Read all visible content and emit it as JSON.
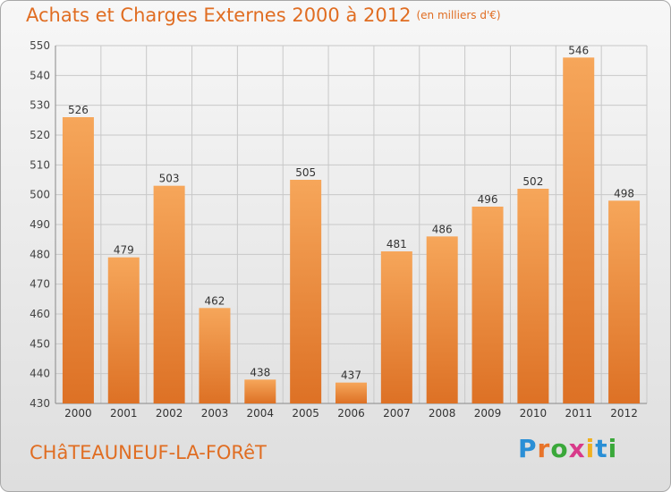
{
  "header": {
    "title": "Achats et Charges Externes 2000 à 2012",
    "unit": "(en milliers d'€)"
  },
  "footer": {
    "commune": "CHâTEAUNEUF-LA-FORêT",
    "brand": "Proxiti"
  },
  "colors": {
    "title": "#e06d22",
    "bar_top": "#f6a65a",
    "bar_bottom": "#dd7125",
    "grid": "#c8c8c8"
  },
  "chart_data": {
    "type": "bar",
    "title": "Achats et Charges Externes 2000 à 2012",
    "subtitle": "(en milliers d'€)",
    "xlabel": "",
    "ylabel": "",
    "categories": [
      "2000",
      "2001",
      "2002",
      "2003",
      "2004",
      "2005",
      "2006",
      "2007",
      "2008",
      "2009",
      "2010",
      "2011",
      "2012"
    ],
    "values": [
      526,
      479,
      503,
      462,
      438,
      505,
      437,
      481,
      486,
      496,
      502,
      546,
      498
    ],
    "ylim": [
      430,
      550
    ],
    "yticks": [
      430,
      440,
      450,
      460,
      470,
      480,
      490,
      500,
      510,
      520,
      530,
      540,
      550
    ],
    "grid": true,
    "data_labels": true
  }
}
